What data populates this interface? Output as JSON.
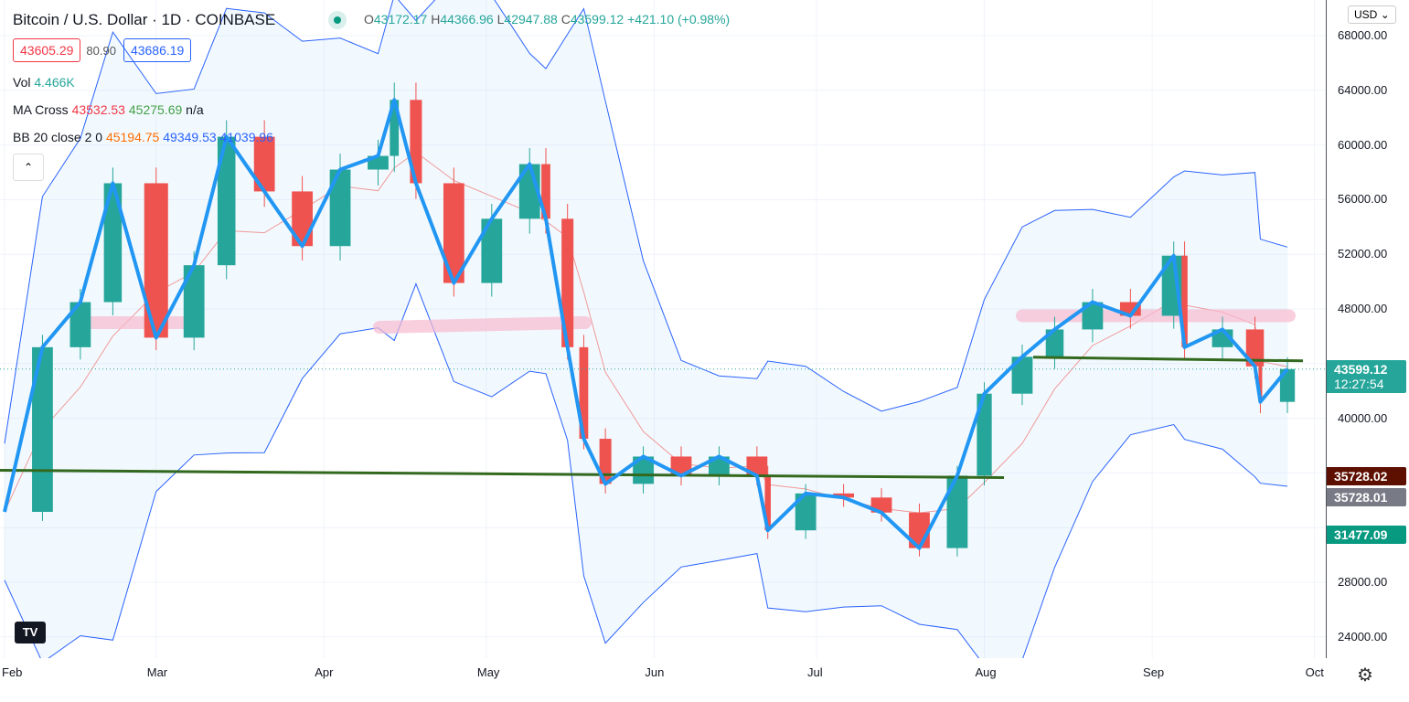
{
  "header": {
    "title": "Bitcoin / U.S. Dollar · 1D · COINBASE",
    "ohlc": {
      "o_label": "O",
      "o": "43172.17",
      "h_label": "H",
      "h": "44366.96",
      "l_label": "L",
      "l": "42947.88",
      "c_label": "C",
      "c": "43599.12",
      "change": "+421.10 (+0.98%)"
    }
  },
  "quote": {
    "bid": "43605.29",
    "spread": "80.90",
    "ask": "43686.19"
  },
  "indicators": {
    "vol": {
      "label": "Vol",
      "value": "4.466K"
    },
    "ma_cross": {
      "label": "MA Cross",
      "v1": "43532.53",
      "v2": "45275.69",
      "v3": "n/a"
    },
    "bb": {
      "label": "BB 20 close 2 0",
      "basis": "45194.75",
      "upper": "49349.53",
      "lower": "41039.96"
    }
  },
  "currency_button": "USD",
  "colors": {
    "up": "#26a69a",
    "down": "#ef5350",
    "band": "#2962ff",
    "drawing_blue": "#2196f3",
    "drawing_green": "#33691e",
    "highlight_pink": "#f8bbd0"
  },
  "price_tags": [
    {
      "value": "43599.12",
      "sub": "12:27:54",
      "color": "#26a69a"
    },
    {
      "value": "35728.02",
      "color": "#5d0f00"
    },
    {
      "value": "35728.01",
      "color": "#787b86"
    },
    {
      "value": "31477.09",
      "color": "#089981"
    }
  ],
  "chart_data": {
    "type": "candlestick",
    "title": "Bitcoin / U.S. Dollar · 1D · COINBASE",
    "ylim": [
      22000,
      70000
    ],
    "y_ticks": [
      "68000.00",
      "64000.00",
      "60000.00",
      "56000.00",
      "52000.00",
      "48000.00",
      "40000.00",
      "28000.00",
      "24000.00"
    ],
    "x_ticks": [
      "Feb",
      "Mar",
      "Apr",
      "May",
      "Jun",
      "Jul",
      "Aug",
      "Sep",
      "Oct"
    ],
    "x_tick_dates": [
      "2021-02-01",
      "2021-03-01",
      "2021-04-01",
      "2021-05-01",
      "2021-06-01",
      "2021-07-01",
      "2021-08-01",
      "2021-09-01",
      "2021-10-01"
    ],
    "grid": true,
    "dates": [
      "2021-02-01",
      "2021-02-08",
      "2021-02-15",
      "2021-02-21",
      "2021-03-01",
      "2021-03-08",
      "2021-03-14",
      "2021-03-21",
      "2021-03-28",
      "2021-04-04",
      "2021-04-11",
      "2021-04-14",
      "2021-04-18",
      "2021-04-25",
      "2021-05-02",
      "2021-05-09",
      "2021-05-12",
      "2021-05-16",
      "2021-05-19",
      "2021-05-23",
      "2021-05-30",
      "2021-06-06",
      "2021-06-13",
      "2021-06-20",
      "2021-06-22",
      "2021-06-29",
      "2021-07-06",
      "2021-07-13",
      "2021-07-20",
      "2021-07-27",
      "2021-08-01",
      "2021-08-08",
      "2021-08-14",
      "2021-08-21",
      "2021-08-28",
      "2021-09-05",
      "2021-09-07",
      "2021-09-14",
      "2021-09-20",
      "2021-09-21",
      "2021-09-26"
    ],
    "close": [
      33150,
      45200,
      48500,
      57200,
      45900,
      51200,
      60600,
      56600,
      52600,
      58200,
      59200,
      63300,
      57200,
      49900,
      54600,
      58600,
      54600,
      45200,
      38500,
      35200,
      37200,
      35800,
      37200,
      35800,
      31800,
      34500,
      34200,
      33100,
      30500,
      35800,
      41800,
      44500,
      46500,
      48500,
      47500,
      51900,
      45200,
      46500,
      43800,
      41200,
      43600
    ],
    "horizontal_lines": [
      35728.02,
      44200
    ],
    "highlight_zone": 47000
  }
}
